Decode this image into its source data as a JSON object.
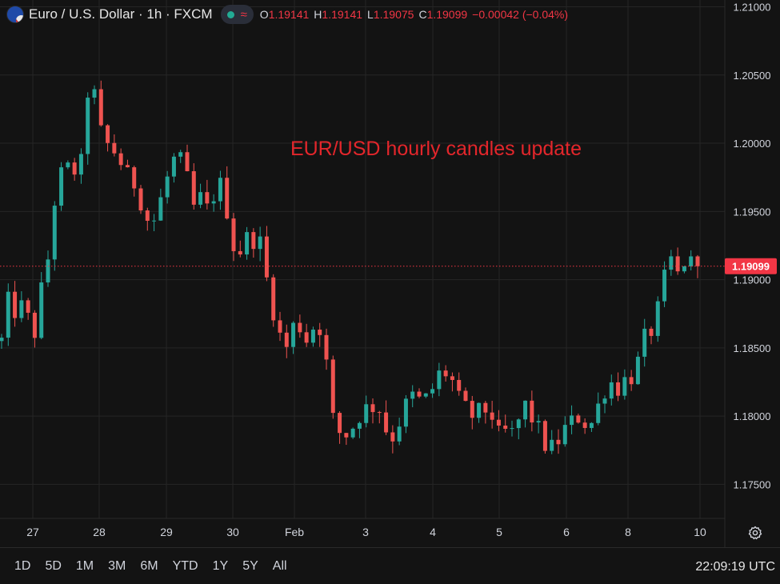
{
  "header": {
    "symbol": "Euro / U.S. Dollar · 1h · FXCM",
    "approx_glyph": "≈",
    "ohlc": {
      "o_label": "O",
      "o_value": "1.19141",
      "h_label": "H",
      "h_value": "1.19141",
      "l_label": "L",
      "l_value": "1.19075",
      "c_label": "C",
      "c_value": "1.19099",
      "change": "−0.00042 (−0.04%)"
    },
    "icons": [
      "flag-icon",
      "market-status-dot-icon",
      "approx-icon"
    ]
  },
  "annotation": "EUR/USD hourly candles update",
  "price_label": "1.19099",
  "time_ranges": [
    "1D",
    "5D",
    "1M",
    "3M",
    "6M",
    "YTD",
    "1Y",
    "5Y",
    "All"
  ],
  "clock": "22:09:19 UTC",
  "colors": {
    "background": "#131313",
    "up": "#26a69a",
    "down": "#ef5350",
    "annotation": "#e3262b",
    "last_price": "#f23645",
    "grid": "#262626"
  },
  "chart_data": {
    "type": "candlestick",
    "title": "Euro / U.S. Dollar · 1h · FXCM",
    "ylim": [
      1.1725,
      1.2105
    ],
    "y_ticks": [
      "1.17500",
      "1.18000",
      "1.18500",
      "1.19000",
      "1.19500",
      "1.20000",
      "1.20500",
      "1.21000"
    ],
    "x_ticks": [
      "27",
      "28",
      "29",
      "30",
      "Feb",
      "3",
      "4",
      "5",
      "6",
      "8",
      "10"
    ],
    "last_price": 1.19099,
    "grid": true,
    "path": [
      [
        0,
        1.1855
      ],
      [
        0.6,
        1.1885
      ],
      [
        1.3,
        1.188
      ],
      [
        2.0,
        1.1875
      ],
      [
        2.6,
        1.188
      ],
      [
        3.5,
        1.187
      ],
      [
        4.4,
        1.186
      ],
      [
        5.0,
        1.189
      ],
      [
        5.8,
        1.1905
      ],
      [
        6.5,
        1.195
      ],
      [
        7.5,
        1.1975
      ],
      [
        8.3,
        1.1982
      ],
      [
        9.0,
        1.1978
      ],
      [
        10.3,
        1.1985
      ],
      [
        11.1,
        1.204
      ],
      [
        11.5,
        1.2045
      ],
      [
        12.1,
        1.203
      ],
      [
        13.0,
        1.2
      ],
      [
        14.0,
        1.1998
      ],
      [
        15.0,
        1.199
      ],
      [
        16.2,
        1.1975
      ],
      [
        17.2,
        1.197
      ],
      [
        18.4,
        1.195
      ],
      [
        19.0,
        1.194
      ],
      [
        19.8,
        1.1945
      ],
      [
        20.5,
        1.196
      ],
      [
        21.3,
        1.1975
      ],
      [
        22.3,
        1.199
      ],
      [
        23.2,
        1.1985
      ],
      [
        24.0,
        1.197
      ],
      [
        24.8,
        1.195
      ],
      [
        25.6,
        1.196
      ],
      [
        26.5,
        1.195
      ],
      [
        27.4,
        1.1965
      ],
      [
        28.3,
        1.197
      ],
      [
        29.0,
        1.195
      ],
      [
        29.8,
        1.1925
      ],
      [
        30.5,
        1.192
      ],
      [
        31.5,
        1.193
      ],
      [
        32.3,
        1.193
      ],
      [
        33.0,
        1.1935
      ],
      [
        33.6,
        1.191
      ],
      [
        34.3,
        1.1895
      ],
      [
        35.2,
        1.187
      ],
      [
        36.1,
        1.1852
      ],
      [
        37.0,
        1.185
      ],
      [
        37.6,
        1.187
      ],
      [
        38.5,
        1.1865
      ],
      [
        39.3,
        1.1855
      ],
      [
        40.2,
        1.1868
      ],
      [
        41.0,
        1.1865
      ],
      [
        41.6,
        1.1845
      ],
      [
        42.4,
        1.18
      ],
      [
        43.1,
        1.179
      ],
      [
        43.9,
        1.1785
      ],
      [
        44.9,
        1.179
      ],
      [
        45.8,
        1.18
      ],
      [
        46.7,
        1.1805
      ],
      [
        47.9,
        1.1808
      ],
      [
        48.7,
        1.1805
      ],
      [
        49.4,
        1.179
      ],
      [
        50.2,
        1.1785
      ],
      [
        51.0,
        1.1795
      ],
      [
        51.7,
        1.1805
      ],
      [
        52.6,
        1.1815
      ],
      [
        53.4,
        1.1812
      ],
      [
        54.2,
        1.181
      ],
      [
        55.2,
        1.1818
      ],
      [
        56.1,
        1.183
      ],
      [
        57.0,
        1.1832
      ],
      [
        57.9,
        1.1825
      ],
      [
        58.7,
        1.1812
      ],
      [
        59.6,
        1.1805
      ],
      [
        60.5,
        1.18
      ],
      [
        61.3,
        1.1802
      ],
      [
        62.3,
        1.1805
      ],
      [
        63.1,
        1.18
      ],
      [
        63.8,
        1.1785
      ],
      [
        64.7,
        1.1788
      ],
      [
        65.5,
        1.1786
      ],
      [
        66.3,
        1.1795
      ],
      [
        67.2,
        1.1808
      ],
      [
        68.0,
        1.18
      ],
      [
        68.9,
        1.179
      ],
      [
        69.7,
        1.178
      ],
      [
        70.5,
        1.1775
      ],
      [
        71.3,
        1.178
      ],
      [
        72.3,
        1.179
      ],
      [
        73.2,
        1.1795
      ],
      [
        74.0,
        1.18
      ],
      [
        75.0,
        1.1795
      ],
      [
        75.9,
        1.1795
      ],
      [
        76.8,
        1.181
      ],
      [
        77.6,
        1.1822
      ],
      [
        78.4,
        1.1825
      ],
      [
        79.4,
        1.182
      ],
      [
        80.2,
        1.1828
      ],
      [
        81.1,
        1.183
      ],
      [
        81.8,
        1.184
      ],
      [
        82.4,
        1.1855
      ],
      [
        83.2,
        1.186
      ],
      [
        84.0,
        1.187
      ],
      [
        84.8,
        1.189
      ],
      [
        85.5,
        1.191
      ],
      [
        86.1,
        1.1915
      ],
      [
        86.5,
        1.19
      ],
      [
        87.1,
        1.1905
      ],
      [
        87.8,
        1.1915
      ],
      [
        88.4,
        1.1912
      ],
      [
        88.9,
        1.191
      ],
      [
        89.4,
        1.19099
      ]
    ]
  }
}
